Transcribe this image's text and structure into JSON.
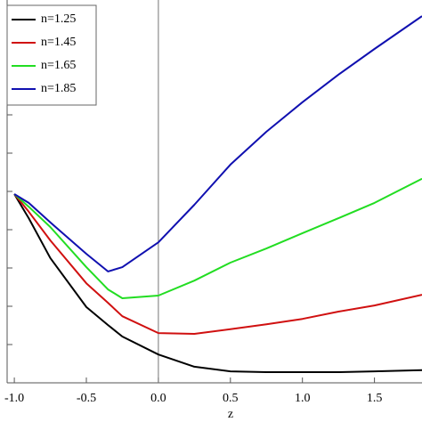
{
  "chart_data": {
    "type": "line",
    "x": [
      -1,
      -0.9,
      -0.75,
      -0.5,
      -0.35,
      -0.25,
      0,
      0.25,
      0.5,
      0.75,
      1,
      1.25,
      1.5,
      1.83
    ],
    "series": [
      {
        "name": "n=1.25",
        "color": "#000000",
        "values": [
          0.493,
          0.43,
          0.326,
          0.198,
          0.151,
          0.121,
          0.074,
          0.042,
          0.03,
          0.028,
          0.028,
          0.028,
          0.03,
          0.033
        ]
      },
      {
        "name": "n=1.45",
        "color": "#d01010",
        "values": [
          0.493,
          0.447,
          0.372,
          0.26,
          0.209,
          0.174,
          0.13,
          0.128,
          0.14,
          0.153,
          0.167,
          0.186,
          0.202,
          0.23
        ]
      },
      {
        "name": "n=1.65",
        "color": "#22dd22",
        "values": [
          0.493,
          0.46,
          0.407,
          0.302,
          0.244,
          0.221,
          0.228,
          0.267,
          0.314,
          0.351,
          0.391,
          0.43,
          0.47,
          0.533
        ]
      },
      {
        "name": "n=1.85",
        "color": "#1010b0",
        "values": [
          0.493,
          0.47,
          0.419,
          0.337,
          0.291,
          0.302,
          0.367,
          0.465,
          0.57,
          0.656,
          0.733,
          0.805,
          0.872,
          0.958
        ]
      }
    ],
    "xlabel": "z",
    "xlim": [
      -1.05,
      1.83
    ],
    "xticks": [
      {
        "value": -1,
        "label": "-1.0"
      },
      {
        "value": -0.5,
        "label": "-0.5"
      },
      {
        "value": 0,
        "label": "0.0"
      },
      {
        "value": 0.5,
        "label": "0.5"
      },
      {
        "value": 1,
        "label": "1.0"
      },
      {
        "value": 1.5,
        "label": "1.5"
      }
    ],
    "ylim": [
      0,
      1
    ],
    "yticks": [
      0.1,
      0.2,
      0.3,
      0.4,
      0.5,
      0.6,
      0.7,
      0.8,
      0.9
    ],
    "legend": "upper left"
  }
}
